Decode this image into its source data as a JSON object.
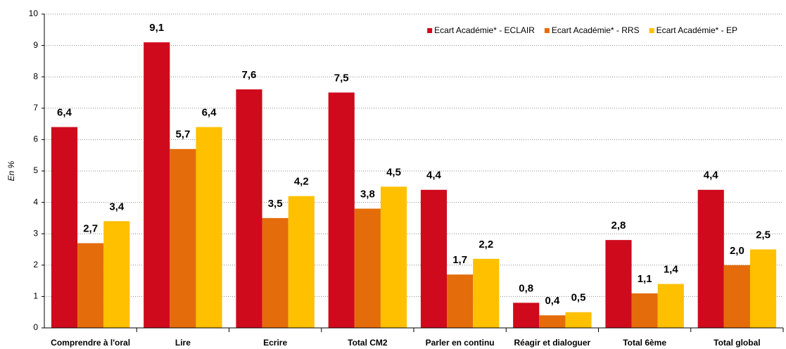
{
  "chart_data": {
    "type": "bar",
    "y_label": "En %",
    "categories": [
      "Comprendre à l'oral",
      "Lire",
      "Ecrire",
      "Total CM2",
      "Parler en continu",
      "Réagir et dialoguer",
      "Total 6ème",
      "Total global"
    ],
    "series": [
      {
        "name": "Ecart Académie* - ECLAIR",
        "color": "#cf0a1d",
        "values": [
          6.4,
          9.1,
          7.6,
          7.5,
          4.4,
          0.8,
          2.8,
          4.4
        ],
        "value_labels": [
          "6,4",
          "9,1",
          "7,6",
          "7,5",
          "4,4",
          "0,8",
          "2,8",
          "4,4"
        ]
      },
      {
        "name": "Ecart Académie* - RRS",
        "color": "#e46c0a",
        "values": [
          2.7,
          5.7,
          3.5,
          3.8,
          1.7,
          0.4,
          1.1,
          2.0
        ],
        "value_labels": [
          "2,7",
          "5,7",
          "3,5",
          "3,8",
          "1,7",
          "0,4",
          "1,1",
          "2,0"
        ]
      },
      {
        "name": "Ecart Académie* - EP",
        "color": "#ffc000",
        "values": [
          3.4,
          6.4,
          4.2,
          4.5,
          2.2,
          0.5,
          1.4,
          2.5
        ],
        "value_labels": [
          "3,4",
          "6,4",
          "4,2",
          "4,5",
          "2,2",
          "0,5",
          "1,4",
          "2,5"
        ]
      }
    ],
    "ylim": [
      0,
      10
    ],
    "yticks": [
      0,
      1,
      2,
      3,
      4,
      5,
      6,
      7,
      8,
      9,
      10
    ],
    "grid": true,
    "legend": "top-right"
  }
}
